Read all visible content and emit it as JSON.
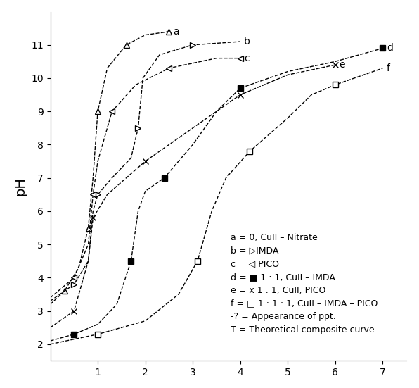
{
  "chart_data": {
    "type": "line",
    "y_label": "pH",
    "xlim": [
      0,
      7.5
    ],
    "xticks": [
      1,
      2,
      3,
      4,
      5,
      6,
      7
    ],
    "ylim": [
      1.5,
      12
    ],
    "yticks": [
      2,
      3,
      4,
      5,
      6,
      7,
      8,
      9,
      10,
      11
    ],
    "grid": false,
    "color": "#000000",
    "line_style": "dashed",
    "series": [
      {
        "name": "a",
        "marker": "triangle_up",
        "x": [
          0,
          0.3,
          0.6,
          0.8,
          0.9,
          1.0,
          1.2,
          1.6,
          2.0,
          2.5
        ],
        "values": [
          3.2,
          3.6,
          4.3,
          5.5,
          7.0,
          9.0,
          10.3,
          11.0,
          11.3,
          11.4
        ]
      },
      {
        "name": "b",
        "marker": "triangle_right",
        "x": [
          0,
          0.5,
          0.8,
          0.9,
          1.0,
          1.3,
          1.7,
          1.85,
          1.95,
          2.3,
          3.0,
          4.0
        ],
        "values": [
          3.3,
          3.8,
          4.5,
          6.0,
          6.5,
          7.0,
          7.6,
          8.5,
          10.0,
          10.7,
          11.0,
          11.1
        ]
      },
      {
        "name": "c",
        "marker": "triangle_left",
        "x": [
          0,
          0.5,
          0.8,
          0.9,
          1.0,
          1.3,
          1.8,
          2.5,
          3.5,
          4.0
        ],
        "values": [
          3.4,
          4.0,
          5.0,
          6.5,
          7.5,
          9.0,
          9.8,
          10.3,
          10.6,
          10.6
        ]
      },
      {
        "name": "d",
        "marker": "square_filled",
        "x": [
          0,
          0.5,
          1.0,
          1.4,
          1.7,
          1.85,
          2.0,
          2.4,
          3.0,
          3.5,
          4.0,
          5.0,
          6.0,
          7.0
        ],
        "values": [
          2.1,
          2.3,
          2.6,
          3.2,
          4.5,
          6.0,
          6.6,
          7.0,
          8.0,
          9.0,
          9.7,
          10.2,
          10.5,
          10.9
        ]
      },
      {
        "name": "e",
        "marker": "x",
        "x": [
          0,
          0.5,
          0.8,
          0.9,
          1.2,
          2.0,
          3.0,
          4.0,
          5.0,
          6.0
        ],
        "values": [
          2.5,
          3.0,
          4.5,
          5.8,
          6.5,
          7.5,
          8.5,
          9.5,
          10.1,
          10.4
        ]
      },
      {
        "name": "f",
        "marker": "square_open",
        "x": [
          0,
          1.0,
          2.0,
          2.7,
          3.1,
          3.4,
          3.7,
          4.2,
          5.0,
          5.5,
          6.0,
          7.0
        ],
        "values": [
          2.0,
          2.3,
          2.7,
          3.5,
          4.5,
          6.0,
          7.0,
          7.8,
          8.8,
          9.5,
          9.8,
          10.3
        ]
      }
    ],
    "key": [
      "a = 0, CuII – Nitrate",
      "b = ▷IMDA",
      "c = ◁ PICO",
      "d = ■ 1 : 1, CuII – IMDA",
      "e = x 1 : 1, CuII, PICO",
      "f = □ 1 : 1 : 1, CuII – IMDA – PICO",
      "-? = Appearance of ppt.",
      "T = Theoretical composite curve"
    ]
  }
}
